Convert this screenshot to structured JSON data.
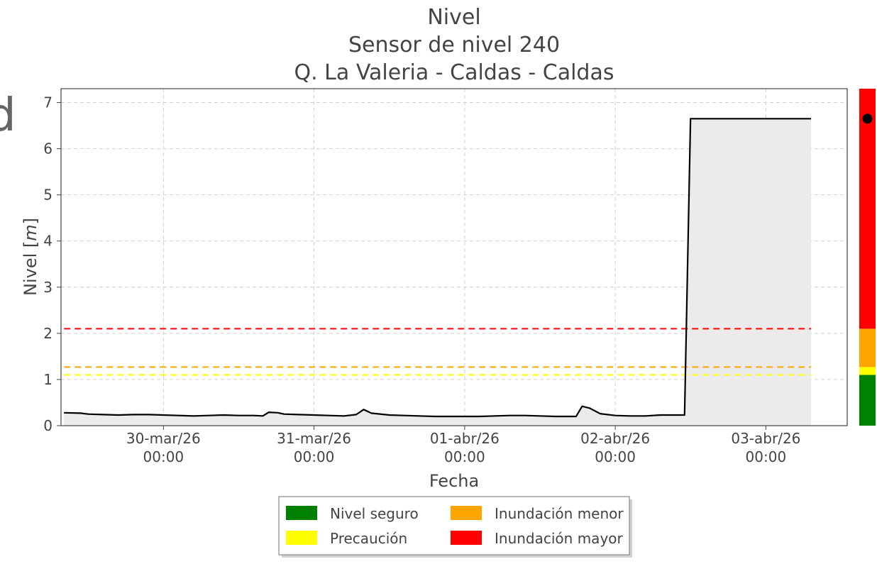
{
  "chart_data": {
    "type": "line",
    "title_lines": [
      "Nivel",
      "Sensor de nivel 240",
      "Q. La Valeria - Caldas - Caldas"
    ],
    "xlabel": "Fecha",
    "ylabel_prefix": "Nivel [",
    "ylabel_unit": "m",
    "ylabel_suffix": "]",
    "ylim": [
      0,
      7.3
    ],
    "yticks": [
      0,
      1,
      2,
      3,
      4,
      5,
      6,
      7
    ],
    "xlim": [
      -0.68,
      4.54
    ],
    "xticks": [
      {
        "x": 0,
        "line1": "30-mar/26",
        "line2": "00:00"
      },
      {
        "x": 1,
        "line1": "31-mar/26",
        "line2": "00:00"
      },
      {
        "x": 2,
        "line1": "01-abr/26",
        "line2": "00:00"
      },
      {
        "x": 3,
        "line1": "02-abr/26",
        "line2": "00:00"
      },
      {
        "x": 4,
        "line1": "03-abr/26",
        "line2": "00:00"
      }
    ],
    "grid": true,
    "series": [
      {
        "color": "#000000",
        "fill": "#ebebeb",
        "points": [
          [
            -0.66,
            0.28
          ],
          [
            -0.55,
            0.27
          ],
          [
            -0.5,
            0.25
          ],
          [
            -0.4,
            0.24
          ],
          [
            -0.3,
            0.23
          ],
          [
            -0.2,
            0.24
          ],
          [
            -0.1,
            0.24
          ],
          [
            0.0,
            0.23
          ],
          [
            0.1,
            0.22
          ],
          [
            0.2,
            0.21
          ],
          [
            0.3,
            0.22
          ],
          [
            0.4,
            0.23
          ],
          [
            0.5,
            0.22
          ],
          [
            0.6,
            0.22
          ],
          [
            0.66,
            0.21
          ],
          [
            0.7,
            0.29
          ],
          [
            0.76,
            0.28
          ],
          [
            0.8,
            0.25
          ],
          [
            0.9,
            0.24
          ],
          [
            1.0,
            0.23
          ],
          [
            1.1,
            0.22
          ],
          [
            1.2,
            0.21
          ],
          [
            1.28,
            0.24
          ],
          [
            1.33,
            0.35
          ],
          [
            1.38,
            0.27
          ],
          [
            1.5,
            0.23
          ],
          [
            1.6,
            0.22
          ],
          [
            1.7,
            0.21
          ],
          [
            1.8,
            0.2
          ],
          [
            1.9,
            0.2
          ],
          [
            2.0,
            0.2
          ],
          [
            2.1,
            0.2
          ],
          [
            2.2,
            0.21
          ],
          [
            2.3,
            0.22
          ],
          [
            2.4,
            0.22
          ],
          [
            2.5,
            0.21
          ],
          [
            2.6,
            0.2
          ],
          [
            2.74,
            0.2
          ],
          [
            2.78,
            0.42
          ],
          [
            2.83,
            0.38
          ],
          [
            2.9,
            0.26
          ],
          [
            3.0,
            0.22
          ],
          [
            3.1,
            0.21
          ],
          [
            3.2,
            0.21
          ],
          [
            3.3,
            0.23
          ],
          [
            3.4,
            0.23
          ],
          [
            3.46,
            0.23
          ],
          [
            3.5,
            6.65
          ],
          [
            4.3,
            6.65
          ],
          [
            4.3,
            6.65
          ]
        ]
      }
    ],
    "thresholds": [
      {
        "label": "Inundación mayor",
        "value": 2.1,
        "color": "#ff0000"
      },
      {
        "label": "Inundación menor",
        "value": 1.27,
        "color": "#ffa500"
      },
      {
        "label": "Precaución",
        "value": 1.1,
        "color": "#ffff00"
      }
    ],
    "current_level": 6.65,
    "level_bar": [
      {
        "from": 0,
        "to": 1.1,
        "color": "#008000"
      },
      {
        "from": 1.1,
        "to": 1.27,
        "color": "#ffff00"
      },
      {
        "from": 1.27,
        "to": 2.1,
        "color": "#ffa500"
      },
      {
        "from": 2.1,
        "to": 7.3,
        "color": "#ff0000"
      }
    ],
    "legend": {
      "placement": "bottom-center",
      "items": [
        {
          "label": "Nivel seguro",
          "color": "#008000"
        },
        {
          "label": "Inundación menor",
          "color": "#ffa500"
        },
        {
          "label": "Precaución",
          "color": "#ffff00"
        },
        {
          "label": "Inundación mayor",
          "color": "#ff0000"
        }
      ]
    }
  }
}
